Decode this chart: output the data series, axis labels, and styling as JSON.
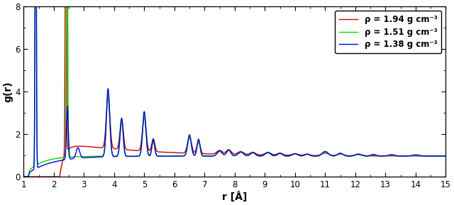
{
  "xlabel": "r [Å]",
  "ylabel": "g(r)",
  "xlim": [
    1,
    15
  ],
  "ylim": [
    0,
    8
  ],
  "xticks": [
    1,
    2,
    3,
    4,
    5,
    6,
    7,
    8,
    9,
    10,
    11,
    12,
    13,
    14,
    15
  ],
  "yticks": [
    0,
    2,
    4,
    6,
    8
  ],
  "legend": [
    {
      "label": "ρ = 1.38 g cm⁻³",
      "color": "#0000dd"
    },
    {
      "label": "ρ = 1.51 g cm⁻³",
      "color": "#00dd00"
    },
    {
      "label": "ρ = 1.94 g cm⁻³",
      "color": "#cc0000"
    }
  ],
  "background_color": "#ffffff",
  "line_width": 1.0
}
